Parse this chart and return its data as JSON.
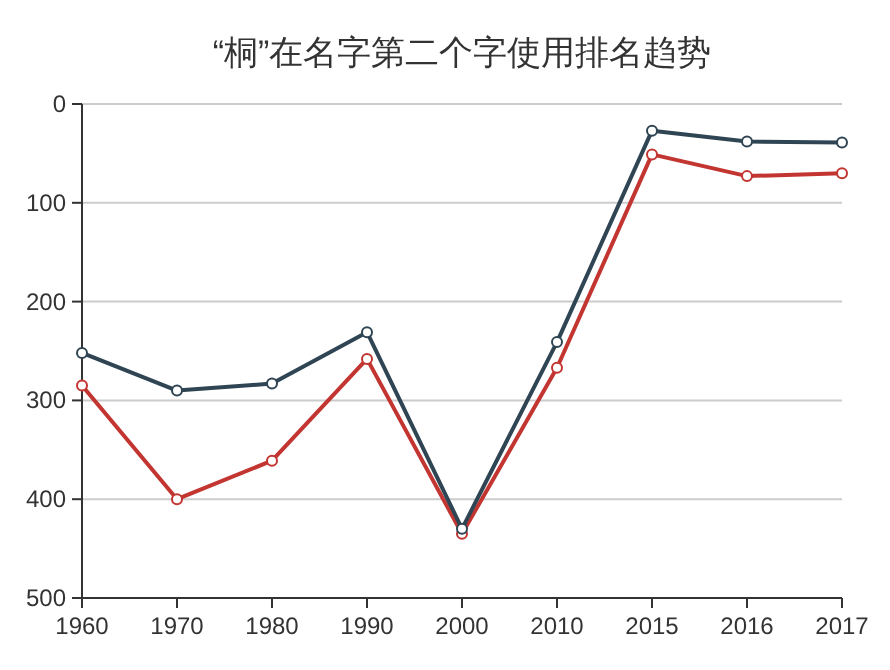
{
  "chart_data": {
    "type": "line",
    "title": "“桐”在名字第二个字使用排名趋势",
    "categories": [
      "1960",
      "1970",
      "1980",
      "1990",
      "2000",
      "2010",
      "2015",
      "2016",
      "2017"
    ],
    "series": [
      {
        "color": "#2f4554",
        "values": [
          252,
          290,
          283,
          231,
          430,
          241,
          27,
          38,
          39
        ]
      },
      {
        "color": "#c23531",
        "values": [
          285,
          400,
          361,
          258,
          435,
          267,
          51,
          73,
          70
        ]
      }
    ],
    "ylim": [
      500,
      0
    ],
    "yticks": [
      0,
      100,
      200,
      300,
      400,
      500
    ],
    "grid": "y",
    "marker": "circle",
    "line_style": "solid"
  }
}
